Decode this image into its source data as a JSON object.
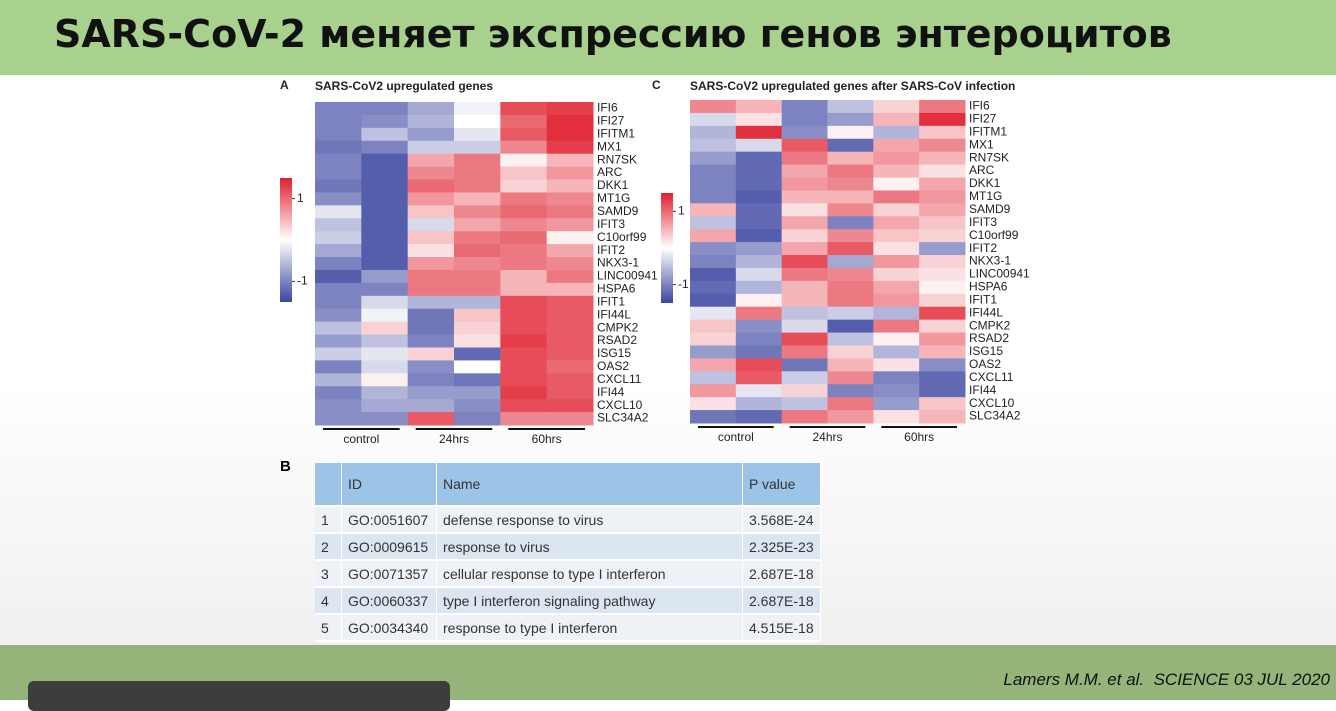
{
  "header": {
    "title": "SARS-CoV-2 меняет экспрессию генов энтероцитов"
  },
  "chart_data": [
    {
      "type": "heatmap",
      "panel": "A",
      "title": "SARS-CoV2 upregulated genes",
      "rows": [
        "IFI6",
        "IFI27",
        "IFITM1",
        "MX1",
        "RN7SK",
        "ARC",
        "DKK1",
        "MT1G",
        "SAMD9",
        "IFIT3",
        "C10orf99",
        "IFIT2",
        "NKX3-1",
        "LINC00941",
        "HSPA6",
        "IFIT1",
        "IFI44L",
        "CMPK2",
        "RSAD2",
        "ISG15",
        "OAS2",
        "CXCL11",
        "IFI44",
        "CXCL10",
        "SLC34A2"
      ],
      "x_groups": [
        "control",
        "24hrs",
        "60hrs"
      ],
      "values": [
        [
          -1,
          -1,
          -0.7,
          -0.1,
          1.2,
          1.3
        ],
        [
          -1,
          -0.9,
          -0.6,
          0,
          1,
          1.4
        ],
        [
          -1,
          -0.5,
          -0.8,
          -0.2,
          1.1,
          1.4
        ],
        [
          -1.1,
          -1,
          -0.4,
          -0.4,
          0.8,
          1.3
        ],
        [
          -1,
          -1.3,
          0.6,
          0.9,
          0.1,
          0.5
        ],
        [
          -1,
          -1.3,
          0.8,
          0.9,
          0.4,
          0.7
        ],
        [
          -1.1,
          -1.3,
          1,
          0.9,
          0.3,
          0.5
        ],
        [
          -0.9,
          -1.3,
          0.7,
          0.5,
          0.9,
          0.8
        ],
        [
          -0.2,
          -1.3,
          0.4,
          0.8,
          1,
          0.9
        ],
        [
          -0.5,
          -1.3,
          -0.3,
          0.6,
          0.8,
          0.7
        ],
        [
          -0.4,
          -1.3,
          0.4,
          0.9,
          1,
          0.1
        ],
        [
          -0.7,
          -1.3,
          0.2,
          1,
          0.9,
          0.6
        ],
        [
          -1,
          -1.3,
          0.7,
          0.8,
          0.9,
          0.8
        ],
        [
          -1.3,
          -0.8,
          0.9,
          0.9,
          0.5,
          0.9
        ],
        [
          -1,
          -1,
          0.9,
          0.9,
          0.5,
          0.5
        ],
        [
          -1,
          -0.3,
          -0.6,
          -0.6,
          1.2,
          1.1
        ],
        [
          -0.9,
          -0.1,
          -1.1,
          0.4,
          1.2,
          1.1
        ],
        [
          -0.5,
          0.3,
          -1.1,
          0.3,
          1.2,
          1.1
        ],
        [
          -0.8,
          -0.5,
          -1,
          0.2,
          1.3,
          1.1
        ],
        [
          -0.4,
          -0.2,
          0.3,
          -1.2,
          1.2,
          1.1
        ],
        [
          -1,
          -0.3,
          -0.9,
          0,
          1.2,
          1
        ],
        [
          -0.6,
          0.1,
          -1,
          -1.1,
          1.2,
          1.1
        ],
        [
          -1,
          -0.6,
          -0.8,
          -0.8,
          1.3,
          1.1
        ],
        [
          -0.9,
          -0.7,
          -0.7,
          -0.9,
          1.2,
          1.2
        ],
        [
          -0.9,
          -0.9,
          1.1,
          -1,
          0.8,
          0.8
        ]
      ],
      "clim": [
        -1.5,
        1.5
      ],
      "cticks": [
        1,
        -1
      ],
      "colors": [
        "#3b45a0",
        "#ffffff",
        "#e0202e"
      ]
    },
    {
      "type": "heatmap",
      "panel": "C",
      "title": "SARS-CoV2 upregulated genes after SARS-CoV infection",
      "rows": [
        "IFI6",
        "IFI27",
        "IFITM1",
        "MX1",
        "RN7SK",
        "ARC",
        "DKK1",
        "MT1G",
        "SAMD9",
        "IFIT3",
        "C10orf99",
        "IFIT2",
        "NKX3-1",
        "LINC00941",
        "HSPA6",
        "IFIT1",
        "IFI44L",
        "CMPK2",
        "RSAD2",
        "ISG15",
        "OAS2",
        "CXCL11",
        "IFI44",
        "CXCL10",
        "SLC34A2"
      ],
      "x_groups": [
        "control",
        "24hrs",
        "60hrs"
      ],
      "values": [
        [
          0.8,
          0.5,
          -1,
          -0.5,
          0.3,
          0.9
        ],
        [
          -0.3,
          0.2,
          -1,
          -0.8,
          0.5,
          1.4
        ],
        [
          -0.6,
          1.4,
          -0.9,
          0.1,
          -0.6,
          0.4
        ],
        [
          -0.5,
          -0.3,
          1.1,
          -1.2,
          0.6,
          0.8
        ],
        [
          -0.8,
          -1.2,
          0.9,
          0.5,
          0.7,
          0.5
        ],
        [
          -1,
          -1.2,
          0.6,
          0.9,
          0.5,
          0.2
        ],
        [
          -1,
          -1.2,
          0.7,
          0.8,
          0.1,
          0.6
        ],
        [
          -1,
          -1.3,
          0.5,
          0.5,
          0.9,
          0.7
        ],
        [
          0.5,
          -1.2,
          0.2,
          0.8,
          0.3,
          0.6
        ],
        [
          -0.5,
          -1.2,
          0.6,
          -1,
          0.6,
          0.4
        ],
        [
          0.6,
          -1.3,
          0.3,
          0.8,
          0.4,
          0.3
        ],
        [
          -0.9,
          -0.8,
          0.6,
          1.1,
          0.2,
          -0.8
        ],
        [
          -1,
          -0.6,
          1.2,
          -0.7,
          0.7,
          0.3
        ],
        [
          -1.3,
          -0.3,
          0.9,
          0.8,
          0.3,
          0.2
        ],
        [
          -1.2,
          -0.6,
          0.5,
          0.9,
          0.6,
          0.1
        ],
        [
          -1.3,
          0.1,
          0.5,
          0.9,
          0.7,
          0.3
        ],
        [
          -0.2,
          0.9,
          -0.5,
          -0.4,
          -0.6,
          1.2
        ],
        [
          0.4,
          -0.9,
          -0.3,
          -1.3,
          0.9,
          0.3
        ],
        [
          0.3,
          -1,
          1.2,
          -0.5,
          0.1,
          0.7
        ],
        [
          -0.8,
          -1.1,
          0.9,
          0.3,
          -0.6,
          0.5
        ],
        [
          0.6,
          1.2,
          -1.1,
          0.5,
          0.2,
          -0.9
        ],
        [
          -0.5,
          1.1,
          -0.4,
          0.8,
          -1,
          -1.2
        ],
        [
          0.7,
          -0.2,
          0.3,
          -1,
          -0.9,
          -1.2
        ],
        [
          0.2,
          -0.6,
          -0.5,
          0.9,
          -0.8,
          0.4
        ],
        [
          -1.1,
          -1.2,
          0.9,
          0.7,
          0.2,
          0.5
        ]
      ],
      "clim": [
        -1.5,
        1.5
      ],
      "cticks": [
        1,
        -1
      ],
      "colors": [
        "#3b45a0",
        "#ffffff",
        "#e0202e"
      ]
    }
  ],
  "table": {
    "panel": "B",
    "headers": [
      "ID",
      "Name",
      "P value"
    ],
    "rows": [
      [
        1,
        "GO:0051607",
        "defense response to virus",
        "3.568E-24"
      ],
      [
        2,
        "GO:0009615",
        "response to virus",
        "2.325E-23"
      ],
      [
        3,
        "GO:0071357",
        "cellular response to type I interferon",
        "2.687E-18"
      ],
      [
        4,
        "GO:0060337",
        "type I interferon signaling pathway",
        "2.687E-18"
      ],
      [
        5,
        "GO:0034340",
        "response to type I interferon",
        "4.515E-18"
      ]
    ]
  },
  "citation": "Lamers M.M. et al.  SCIENCE 03 JUL 2020"
}
